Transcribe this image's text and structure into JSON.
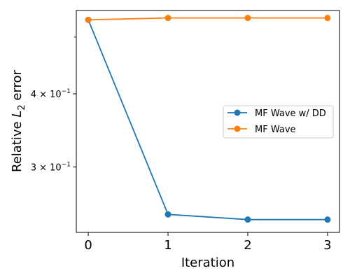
{
  "chart_data": {
    "type": "line",
    "title": "",
    "xlabel": "Iteration",
    "ylabel_prefix": "Relative ",
    "ylabel_symbol": "L",
    "ylabel_subscript": "2",
    "ylabel_suffix": " error",
    "y_scale": "log",
    "x": [
      0,
      1,
      2,
      3
    ],
    "xlim": [
      -0.15,
      3.15
    ],
    "ylim": [
      0.232,
      0.555
    ],
    "x_ticks": [
      {
        "value": 0,
        "label": "0"
      },
      {
        "value": 1,
        "label": "1"
      },
      {
        "value": 2,
        "label": "2"
      },
      {
        "value": 3,
        "label": "3"
      }
    ],
    "y_major_ticks": [
      {
        "value": 0.3,
        "base": "3 × 10",
        "exp": "−1"
      },
      {
        "value": 0.4,
        "base": "4 × 10",
        "exp": "−1"
      }
    ],
    "y_minor_ticks": [
      0.5
    ],
    "grid": false,
    "legend_position": "center-right",
    "series": [
      {
        "name": "MF Wave w/ DD",
        "color": "#1f77b4",
        "marker": "circle",
        "values": [
          0.535,
          0.249,
          0.244,
          0.244
        ]
      },
      {
        "name": "MF Wave",
        "color": "#ff7f0e",
        "marker": "circle",
        "values": [
          0.535,
          0.539,
          0.539,
          0.539
        ]
      }
    ]
  }
}
